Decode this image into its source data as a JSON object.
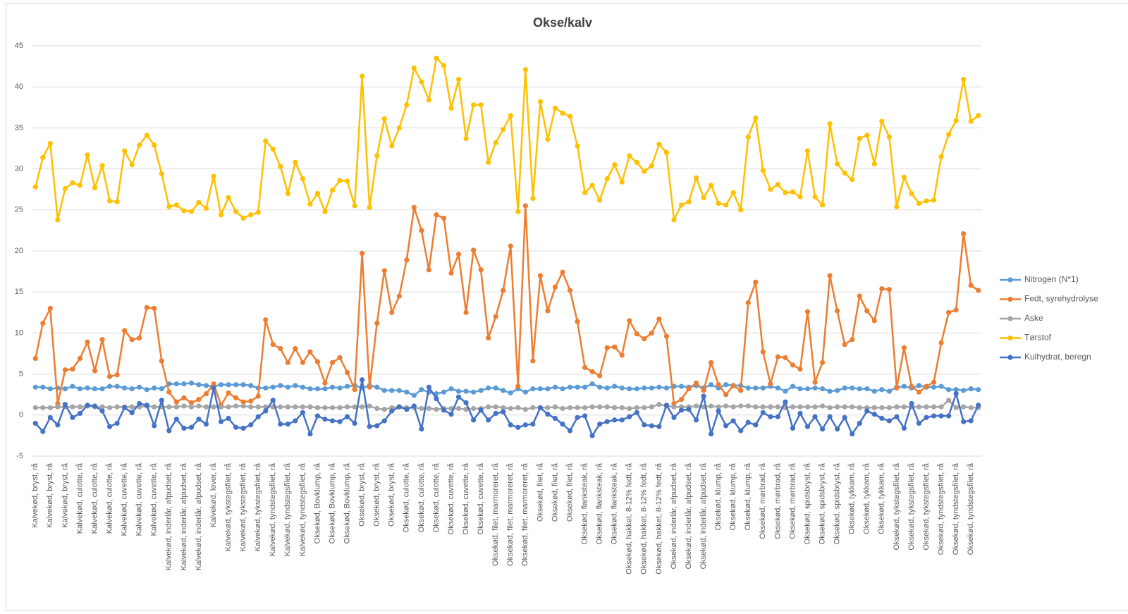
{
  "chart_data": {
    "type": "line",
    "title": "Okse/kalv",
    "categories": [
      "Kalvekød, bryst, rå",
      null,
      "Kalvekød, bryst, rå",
      null,
      "Kalvekød, bryst, rå",
      null,
      "Kalvekød, culotte, rå",
      null,
      "Kalvekød, culotte, rå",
      null,
      "Kalvekød, culotte, rå",
      null,
      "Kalvekød, cuvette, rå",
      null,
      "Kalvekød, cuvette, rå",
      null,
      "Kalvekød, cuvette, rå",
      null,
      "Kalvekød, inderlår, afpudset, rå",
      null,
      "Kalvekød, inderlår, afpudset, rå",
      null,
      "Kalvekød, inderlår, afpudset, rå",
      null,
      "Kalvekød, lever, rå",
      null,
      "Kalvekød, tykstegsfilet, rå",
      null,
      "Kalvekød, tykstegsfilet, rå",
      null,
      "Kalvekød, tykstegsfilet, rå",
      null,
      "Kalvekød, tyndstegsfilet, rå",
      null,
      "Kalvekød, tyndstegsfilet, rå",
      null,
      "Kalvekød, tyndstegsfilet, rå",
      null,
      "Oksekød, Bovklump, rå",
      null,
      "Oksekød, Bovklump, rå",
      null,
      "Oksekød, Bovklump, rå",
      null,
      "Oksekød, bryst, rå",
      null,
      "Oksekød, bryst, rå",
      null,
      "Oksekød, bryst, rå",
      null,
      "Oksekød, culotte, rå",
      null,
      "Oksekød, culotte, rå",
      null,
      "Oksekød, culotte, rå",
      null,
      "Oksekød, cuvette, rå",
      null,
      "Oksekød, cuvette, rå",
      null,
      "Oksekød, cuvette, rå",
      null,
      "Oksekød, filet, marmoreret, rå",
      null,
      "Oksekød, filet, marmoreret, rå",
      null,
      "Oksekød, filet, marmoreret, rå",
      null,
      "Oksekød, filet, rå",
      null,
      "Oksekød, filet, rå",
      null,
      "Oksekød, filet, rå",
      null,
      "Oksekød, flanksteak, rå",
      null,
      "Oksekød, flanksteak, rå",
      null,
      "Oksekød, flanksteak, rå",
      null,
      "Oksekød, hakket, 8-12% fedt, rå",
      null,
      "Oksekød, hakket, 8-12% fedt, rå",
      null,
      "Oksekød, hakket, 8-12% fedt, rå",
      null,
      "Oksekød, inderlår, afpudset, rå",
      null,
      "Oksekød, inderlår, afpudset, rå",
      null,
      "Oksekød, inderlår, afpudset, rå",
      null,
      "Oksekød, klump, rå",
      null,
      "Oksekød, klump, rå",
      null,
      "Oksekød, klump, rå",
      null,
      "Oksekød, mørbrad, rå",
      null,
      "Oksekød, mørbrad, rå",
      null,
      "Oksekød, mørbrad, rå",
      null,
      "Oksekød, spidsbryst, rå",
      null,
      "Oksekød, spidsbryst, rå",
      null,
      "Oksekød, spidsbryst, rå",
      null,
      "Oksekød, tykkam, rå",
      null,
      "Oksekød, tykkam, rå",
      null,
      "Oksekød, tykkam, rå",
      null,
      "Oksekød, tykstegsfilet, rå",
      null,
      "Oksekød, tykstegsfilet, rå",
      null,
      "Oksekød, tykstegsfilet, rå",
      null,
      "Oksekød, tyndstegsfilet, rå",
      null,
      "Oksekød, tyndstegsfilet, rå",
      null,
      "Oksekød, tyndstegsfilet, rå",
      null
    ],
    "series": [
      {
        "name": "Nitrogen (N*1)",
        "color": "#5b9bd5",
        "values": [
          3.4,
          3.4,
          3.2,
          3.3,
          3.2,
          3.5,
          3.2,
          3.3,
          3.2,
          3.2,
          3.5,
          3.5,
          3.3,
          3.2,
          3.4,
          3.1,
          3.3,
          3.2,
          3.8,
          3.8,
          3.8,
          3.9,
          3.7,
          3.6,
          3.5,
          3.7,
          3.7,
          3.7,
          3.7,
          3.6,
          3.3,
          3.3,
          3.4,
          3.6,
          3.4,
          3.6,
          3.4,
          3.2,
          3.2,
          3.2,
          3.4,
          3.3,
          3.5,
          3.6,
          3.3,
          3.6,
          3.4,
          3.0,
          3.0,
          3.0,
          2.8,
          2.4,
          3.1,
          2.8,
          2.6,
          2.8,
          3.2,
          2.9,
          2.9,
          2.8,
          3.0,
          3.3,
          3.3,
          3.0,
          2.7,
          3.2,
          2.8,
          3.2,
          3.2,
          3.2,
          3.4,
          3.2,
          3.4,
          3.4,
          3.4,
          3.8,
          3.4,
          3.3,
          3.5,
          3.3,
          3.2,
          3.2,
          3.3,
          3.3,
          3.4,
          3.3,
          3.5,
          3.5,
          3.4,
          3.6,
          3.3,
          3.7,
          3.3,
          3.7,
          3.6,
          3.6,
          3.3,
          3.3,
          3.3,
          3.5,
          3.3,
          2.9,
          3.5,
          3.2,
          3.2,
          3.3,
          3.2,
          2.9,
          3.0,
          3.3,
          3.3,
          3.2,
          3.2,
          2.9,
          3.1,
          2.9,
          3.4,
          3.5,
          3.3,
          3.6,
          3.4,
          3.4,
          3.5,
          3.1,
          3.1,
          3.0,
          3.2,
          3.1
        ]
      },
      {
        "name": "Fedt, syrehydrolyse",
        "color": "#ed7d31",
        "values": [
          6.9,
          11.2,
          13.0,
          1.4,
          5.5,
          5.6,
          6.9,
          8.9,
          5.4,
          9.2,
          4.7,
          4.9,
          10.3,
          9.2,
          9.4,
          13.1,
          13.0,
          6.6,
          2.8,
          1.6,
          2.1,
          1.5,
          1.9,
          2.6,
          3.8,
          1.2,
          2.7,
          2.1,
          1.6,
          1.7,
          2.3,
          11.6,
          8.6,
          8.1,
          6.4,
          8.1,
          6.4,
          7.7,
          6.5,
          3.9,
          6.4,
          7.0,
          5.2,
          3.1,
          19.7,
          3.4,
          11.2,
          17.6,
          12.5,
          14.5,
          18.9,
          25.3,
          22.5,
          17.7,
          24.4,
          24.0,
          17.3,
          19.6,
          12.5,
          20.1,
          17.7,
          9.4,
          12.0,
          15.2,
          20.6,
          3.5,
          25.5,
          6.6,
          17.0,
          12.7,
          15.6,
          17.4,
          15.2,
          11.4,
          5.8,
          5.3,
          4.8,
          8.2,
          8.3,
          7.3,
          11.5,
          9.9,
          9.3,
          10.0,
          11.7,
          9.6,
          1.4,
          1.9,
          3.2,
          3.9,
          3.0,
          6.4,
          3.7,
          2.5,
          3.6,
          3.0,
          13.7,
          16.2,
          7.7,
          3.8,
          7.1,
          7.0,
          6.1,
          5.6,
          12.6,
          4.0,
          6.4,
          17.0,
          12.7,
          8.6,
          9.2,
          14.5,
          12.7,
          11.5,
          15.4,
          15.3,
          3.3,
          8.2,
          3.5,
          2.8,
          3.5,
          4.0,
          8.8,
          12.5,
          12.8,
          22.1,
          15.8,
          15.2
        ]
      },
      {
        "name": "Aske",
        "color": "#a5a5a5",
        "values": [
          0.9,
          0.9,
          0.9,
          1.0,
          1.0,
          1.0,
          1.0,
          1.1,
          1.0,
          1.0,
          0.9,
          1.0,
          1.0,
          1.0,
          1.0,
          1.1,
          1.0,
          1.0,
          1.0,
          1.0,
          1.1,
          1.0,
          1.1,
          1.0,
          1.0,
          1.0,
          1.0,
          1.1,
          1.1,
          1.0,
          1.0,
          1.0,
          1.0,
          1.0,
          1.0,
          1.0,
          1.0,
          1.0,
          0.9,
          0.9,
          0.9,
          0.9,
          1.0,
          1.0,
          1.0,
          1.1,
          0.8,
          0.7,
          0.9,
          1.0,
          0.9,
          0.9,
          0.8,
          0.8,
          0.7,
          0.8,
          0.8,
          0.8,
          0.7,
          0.8,
          0.8,
          1.0,
          1.0,
          0.9,
          0.8,
          0.9,
          0.7,
          0.9,
          0.9,
          0.9,
          1.0,
          0.8,
          0.9,
          0.9,
          0.9,
          1.0,
          1.0,
          1.0,
          0.9,
          0.9,
          0.8,
          0.9,
          0.9,
          1.0,
          1.3,
          1.1,
          1.0,
          1.0,
          1.0,
          1.1,
          1.0,
          1.1,
          1.0,
          1.1,
          1.0,
          1.1,
          1.1,
          1.0,
          1.0,
          1.0,
          1.0,
          0.9,
          1.0,
          1.0,
          1.0,
          1.0,
          1.1,
          0.9,
          1.0,
          1.0,
          1.0,
          0.9,
          0.9,
          0.9,
          0.9,
          0.9,
          1.0,
          1.0,
          1.0,
          1.0,
          1.0,
          1.0,
          1.0,
          1.8,
          0.9,
          1.0,
          0.9,
          0.9
        ]
      },
      {
        "name": "Tørstof",
        "color": "#ffc000",
        "values": [
          27.8,
          31.4,
          33.1,
          23.8,
          27.6,
          28.3,
          28.0,
          31.7,
          27.7,
          30.4,
          26.1,
          26.0,
          32.2,
          30.5,
          32.9,
          34.1,
          32.9,
          29.4,
          25.4,
          25.6,
          24.9,
          24.8,
          25.9,
          25.2,
          29.1,
          24.4,
          26.5,
          24.8,
          24.0,
          24.4,
          24.7,
          33.4,
          32.4,
          30.3,
          27.0,
          30.8,
          28.8,
          25.7,
          27.0,
          24.8,
          27.4,
          28.6,
          28.5,
          25.5,
          41.3,
          25.3,
          31.6,
          36.1,
          32.8,
          35.0,
          37.8,
          42.3,
          40.6,
          38.4,
          43.5,
          42.6,
          37.4,
          40.9,
          33.7,
          37.8,
          37.8,
          30.8,
          33.2,
          34.8,
          36.5,
          24.8,
          42.1,
          26.4,
          38.2,
          33.6,
          37.4,
          36.8,
          36.4,
          32.8,
          27.1,
          28.0,
          26.2,
          28.8,
          30.5,
          28.4,
          31.6,
          30.8,
          29.7,
          30.4,
          33.0,
          32.0,
          23.8,
          25.6,
          26.0,
          28.9,
          26.5,
          28.0,
          25.8,
          25.6,
          27.1,
          25.0,
          33.9,
          36.2,
          29.8,
          27.5,
          28.1,
          27.1,
          27.2,
          26.6,
          32.2,
          26.6,
          25.6,
          35.5,
          30.6,
          29.5,
          28.7,
          33.7,
          34.1,
          30.6,
          35.8,
          33.9,
          25.4,
          29.0,
          27.0,
          25.8,
          26.1,
          26.2,
          31.5,
          34.2,
          35.9,
          40.9,
          35.8,
          36.5
        ]
      },
      {
        "name": "Kulhydrat, beregn",
        "color": "#4472c4",
        "values": [
          -1.0,
          -2.0,
          -0.3,
          -1.2,
          1.3,
          -0.3,
          0.2,
          1.2,
          1.1,
          0.5,
          -1.4,
          -1.0,
          0.9,
          0.3,
          1.4,
          1.2,
          -1.3,
          1.8,
          -1.9,
          -0.5,
          -1.6,
          -1.5,
          -0.5,
          -1.1,
          3.3,
          -0.8,
          -0.4,
          -1.5,
          -1.6,
          -1.2,
          -0.2,
          0.5,
          1.8,
          -1.1,
          -1.1,
          -0.7,
          0.3,
          -2.3,
          -0.1,
          -0.5,
          -0.7,
          -0.8,
          -0.2,
          -1.0,
          4.3,
          -1.4,
          -1.3,
          -0.7,
          0.5,
          1.0,
          0.7,
          1.1,
          -1.7,
          3.4,
          2.0,
          0.6,
          0.1,
          2.2,
          1.5,
          -0.6,
          0.6,
          -0.6,
          0.2,
          0.4,
          -1.2,
          -1.5,
          -1.2,
          -1.1,
          0.9,
          0.1,
          -0.4,
          -1.1,
          -1.9,
          -0.3,
          -0.1,
          -2.5,
          -1.1,
          -0.8,
          -0.6,
          -0.6,
          -0.2,
          0.3,
          -1.2,
          -1.3,
          -1.4,
          1.2,
          -0.3,
          0.6,
          0.7,
          -0.6,
          2.3,
          -2.3,
          0.5,
          -1.3,
          -0.7,
          -1.9,
          -0.9,
          -1.2,
          0.3,
          -0.2,
          -0.2,
          1.6,
          -1.6,
          0.2,
          -1.4,
          -0.2,
          -1.7,
          -0.2,
          -1.7,
          -0.3,
          -2.3,
          -1.0,
          0.5,
          0.1,
          -0.4,
          -0.7,
          -0.2,
          -1.6,
          1.4,
          -1.0,
          -0.3,
          -0.1,
          -0.1,
          -0.1,
          2.6,
          -0.8,
          -0.7,
          1.2
        ]
      }
    ],
    "ylim": [
      -5,
      45
    ],
    "yticks": [
      -5,
      0,
      5,
      10,
      15,
      20,
      25,
      30,
      35,
      40,
      45
    ],
    "grid": true,
    "legend": "right"
  }
}
